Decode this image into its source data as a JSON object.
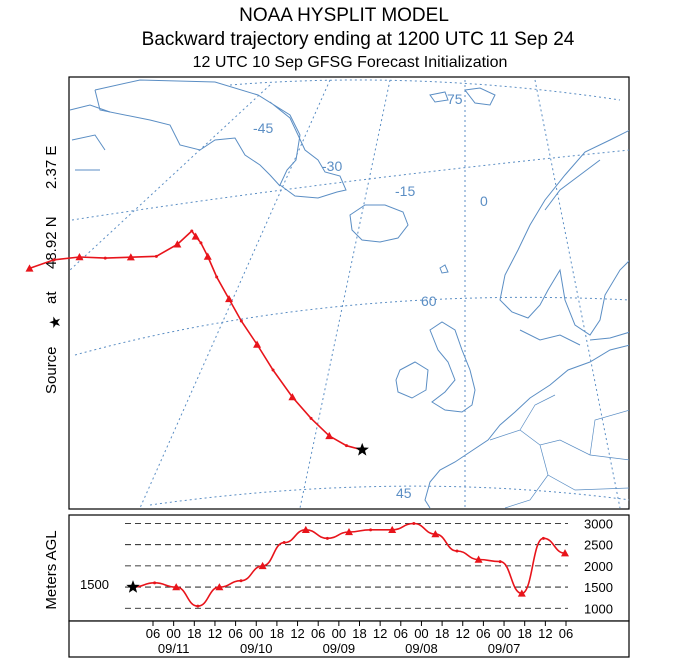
{
  "title": {
    "line1": "NOAA HYSPLIT MODEL",
    "line2": "Backward trajectory ending at 1200 UTC 11 Sep 24",
    "line3": "12 UTC 10 Sep    GFSG  Forecast Initialization"
  },
  "source_label": {
    "source": "Source",
    "at": "at",
    "lat": "48.92 N",
    "lon": "2.37 E"
  },
  "map": {
    "grid_labels": [
      "75",
      "-45",
      "-30",
      "-15",
      "0",
      "60",
      "45"
    ]
  },
  "colors": {
    "trajectory": "#e8141b",
    "coast": "#5b8ec4",
    "grid": "#5b8ec4"
  },
  "chart_data": {
    "type": "line",
    "title": "Backward trajectory ending at 1200 UTC 11 Sep 24",
    "ylabel": "Meters AGL",
    "start_height": "1500",
    "yticks": [
      "3000",
      "2500",
      "2000",
      "1500",
      "1000"
    ],
    "ytick_values": [
      3000,
      2500,
      2000,
      1500,
      1000
    ],
    "ylim": [
      700,
      3200
    ],
    "x_tick_labels": [
      "06",
      "00",
      "18",
      "12",
      "06",
      "00",
      "18",
      "12",
      "06",
      "00",
      "18",
      "12",
      "06",
      "00",
      "18",
      "12",
      "06",
      "00",
      "18",
      "12",
      "06"
    ],
    "x_date_labels": [
      "09/11",
      "09/10",
      "09/09",
      "09/08",
      "09/07"
    ],
    "hours_back": [
      0,
      6,
      12,
      18,
      24,
      30,
      36,
      42,
      48,
      54,
      60,
      66,
      72,
      78,
      84,
      90,
      96,
      102,
      108,
      114,
      120
    ],
    "height_m": [
      1500,
      1600,
      1500,
      1050,
      1500,
      1650,
      2000,
      2550,
      2850,
      2650,
      2800,
      2850,
      2850,
      3000,
      2750,
      2350,
      2150,
      2100,
      1350,
      2650,
      2300
    ],
    "trajectory_lat": [
      48.92,
      49.7,
      50.8,
      52.3,
      54.0,
      56.0,
      57.8,
      59.5,
      61.0,
      62.5,
      63.8,
      64.7,
      65.2,
      65.6,
      65.5,
      65.7,
      66.6,
      67.5,
      68.5,
      69.3,
      69.8
    ],
    "trajectory_lon": [
      2.37,
      0.0,
      -2.5,
      -5.0,
      -7.5,
      -10.0,
      -12.0,
      -14.0,
      -15.5,
      -17.0,
      -18.0,
      -18.8,
      -19.5,
      -20.0,
      -22.5,
      -26.0,
      -30.0,
      -34.0,
      -38.0,
      -42.0,
      -46.0
    ]
  }
}
